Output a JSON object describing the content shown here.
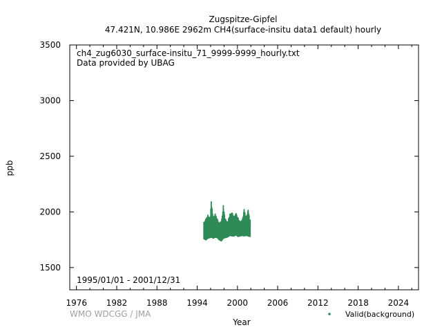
{
  "chart_data": {
    "type": "scatter",
    "title": "Zugspitze-Gipfel",
    "subtitle": "47.421N, 10.986E 2962m    CH4(surface-insitu data1 default) hourly",
    "file_label": "ch4_zug6030_surface-insitu_71_9999-9999_hourly.txt",
    "provider_label": "Data provided by UBAG",
    "period_label": "1995/01/01 - 2001/12/31",
    "credit": "WMO WDCGG / JMA",
    "xlabel": "Year",
    "ylabel": "ppb",
    "xlim": [
      1975,
      2027
    ],
    "ylim": [
      1300,
      3500
    ],
    "xticks": [
      1976,
      1982,
      1988,
      1994,
      2000,
      2006,
      2012,
      2018,
      2024
    ],
    "yticks": [
      1500,
      2000,
      2500,
      3000,
      3500
    ],
    "legend_position": "bottom-right",
    "series": [
      {
        "name": "Valid(background)",
        "color": "#2e8b57",
        "envelope": [
          {
            "x": 1995.0,
            "low": 1755,
            "high": 1910
          },
          {
            "x": 1995.3,
            "low": 1745,
            "high": 1940
          },
          {
            "x": 1995.6,
            "low": 1760,
            "high": 1975
          },
          {
            "x": 1995.9,
            "low": 1765,
            "high": 1950
          },
          {
            "x": 1996.1,
            "low": 1770,
            "high": 2095
          },
          {
            "x": 1996.4,
            "low": 1760,
            "high": 1960
          },
          {
            "x": 1996.7,
            "low": 1770,
            "high": 1985
          },
          {
            "x": 1997.0,
            "low": 1765,
            "high": 1940
          },
          {
            "x": 1997.3,
            "low": 1745,
            "high": 1905
          },
          {
            "x": 1997.6,
            "low": 1735,
            "high": 1920
          },
          {
            "x": 1997.9,
            "low": 1760,
            "high": 2060
          },
          {
            "x": 1998.2,
            "low": 1765,
            "high": 1940
          },
          {
            "x": 1998.5,
            "low": 1770,
            "high": 1915
          },
          {
            "x": 1998.9,
            "low": 1785,
            "high": 1985
          },
          {
            "x": 1999.2,
            "low": 1780,
            "high": 1995
          },
          {
            "x": 1999.5,
            "low": 1780,
            "high": 1965
          },
          {
            "x": 1999.8,
            "low": 1790,
            "high": 1990
          },
          {
            "x": 2000.1,
            "low": 1775,
            "high": 1950
          },
          {
            "x": 2000.4,
            "low": 1780,
            "high": 1915
          },
          {
            "x": 2000.7,
            "low": 1785,
            "high": 1930
          },
          {
            "x": 2001.0,
            "low": 1780,
            "high": 2025
          },
          {
            "x": 2001.3,
            "low": 1785,
            "high": 1960
          },
          {
            "x": 2001.6,
            "low": 1780,
            "high": 2020
          },
          {
            "x": 2001.9,
            "low": 1775,
            "high": 1930
          }
        ]
      }
    ]
  }
}
